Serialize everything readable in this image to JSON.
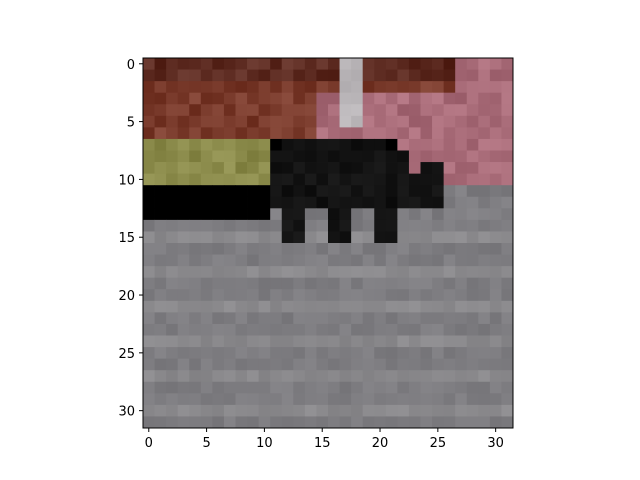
{
  "figure": {
    "x_ticks": [
      "0",
      "5",
      "10",
      "15",
      "20",
      "25",
      "30"
    ],
    "y_ticks": [
      "0",
      "5",
      "10",
      "15",
      "20",
      "25",
      "30"
    ]
  },
  "image": {
    "subject": "black cat walking on pavement",
    "grid_size": 32,
    "palette": {
      "brick_red": "#7a3b2c",
      "brick_dark": "#5c2a20",
      "pink_wall": "#a86b78",
      "grass": "#8a8a4a",
      "pavement": "#7d7c80",
      "pavement_light": "#8a898c",
      "cat": "#121212",
      "pole": "#b9b5b8"
    }
  }
}
